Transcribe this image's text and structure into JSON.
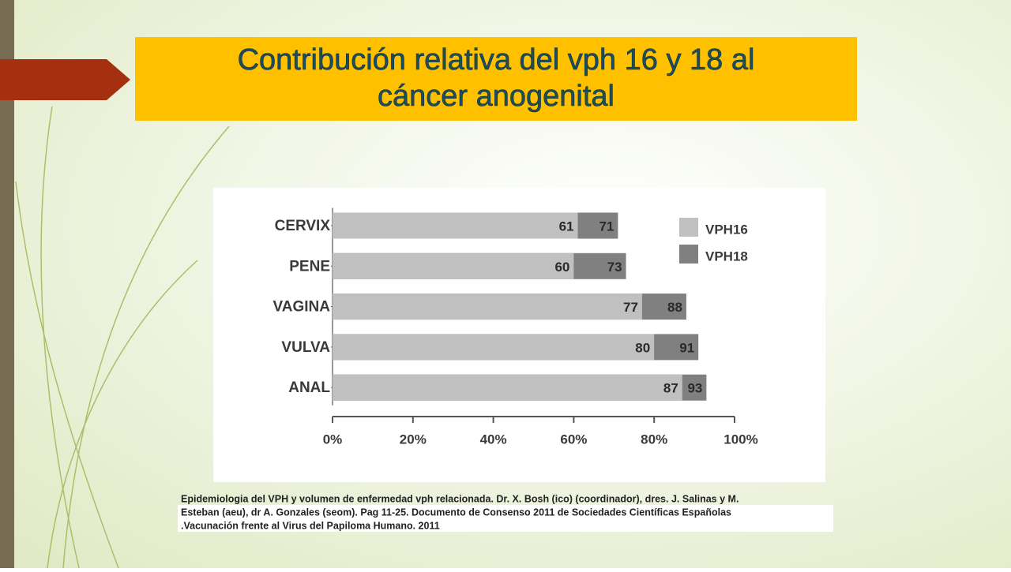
{
  "chart_data": {
    "type": "bar",
    "orientation": "horizontal",
    "title": "Contribución relativa del vph 16 y 18 al cáncer anogenital",
    "categories": [
      "CERVIX",
      "PENE",
      "VAGINA",
      "VULVA",
      "ANAL"
    ],
    "series": [
      {
        "name": "VPH18",
        "color": "#808080",
        "values": [
          71,
          73,
          88,
          91,
          93
        ]
      },
      {
        "name": "VPH16",
        "color": "#c0c0c0",
        "values": [
          61,
          60,
          77,
          80,
          87
        ]
      }
    ],
    "xlim": [
      0,
      100
    ],
    "xticks": [
      {
        "value": 0,
        "label": "0%"
      },
      {
        "value": 20,
        "label": "20%"
      },
      {
        "value": 40,
        "label": "40%"
      },
      {
        "value": 60,
        "label": "60%"
      },
      {
        "value": 80,
        "label": "80%"
      },
      {
        "value": 100,
        "label": "100%"
      }
    ],
    "legend": "right"
  },
  "citation": [
    "Epidemiologia del VPH y volumen de enfermedad  vph relacionada. Dr. X. Bosh (ico) (coordinador), dres. J. Salinas y M.",
    "Esteban  (aeu), dr A. Gonzales (seom). Pag 11-25.  Documento de Consenso 2011 de Sociedades Científicas Españolas",
    ".Vacunación frente al Virus del Papiloma Humano. 2011"
  ]
}
